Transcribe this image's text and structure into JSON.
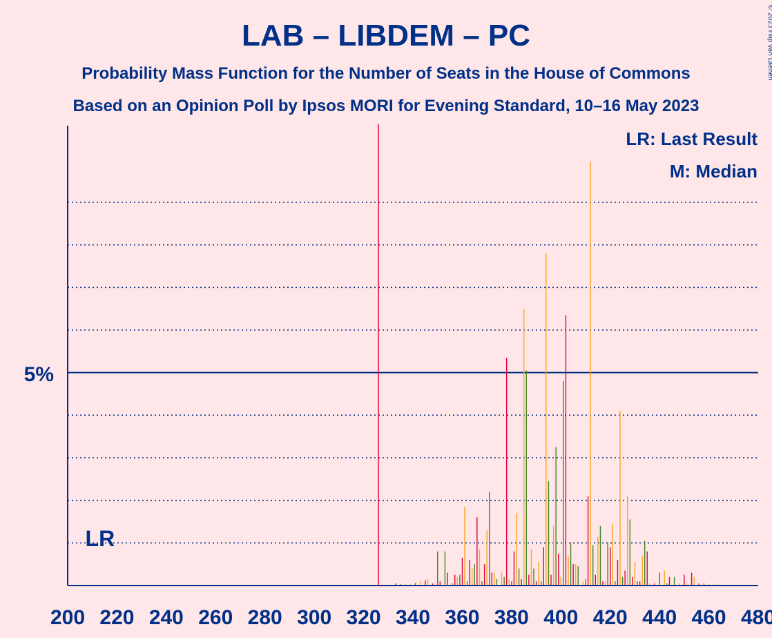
{
  "colors": {
    "background": "#FFE6E8",
    "text": "#003087",
    "lab": "#E4003B",
    "libdem": "#FAA61A",
    "pc": "#3F8428",
    "majority_line": "#E4003B"
  },
  "chart_data": {
    "type": "bar",
    "title": "LAB – LIBDEM – PC",
    "subtitle_1": "Probability Mass Function for the Number of Seats in the House of Commons",
    "subtitle_2": "Based on an Opinion Poll by Ipsos MORI for Evening Standard, 10–16 May 2023",
    "copyright": "© 2023 Filip van Laenen",
    "xlim": [
      200,
      480
    ],
    "ylim": [
      0,
      10.8
    ],
    "x_ticks": [
      "200",
      "220",
      "240",
      "260",
      "280",
      "300",
      "320",
      "340",
      "360",
      "380",
      "400",
      "420",
      "440",
      "460",
      "480"
    ],
    "y_major_tick": {
      "value": 5,
      "label": "5%"
    },
    "y_minor_gridlines": [
      1,
      2,
      3,
      4,
      6,
      7,
      8,
      9
    ],
    "majority_line_x": 326,
    "last_result": {
      "label": "LR",
      "x": 212
    },
    "legend": [
      "LR: Last Result",
      "M: Median"
    ],
    "bars": [
      {
        "x": 333,
        "v": 0.05
      },
      {
        "x": 335,
        "v": 0.03
      },
      {
        "x": 337,
        "v": 0.04
      },
      {
        "x": 339,
        "v": 0.02
      },
      {
        "x": 341,
        "v": 0.06
      },
      {
        "x": 343,
        "v": 0.1
      },
      {
        "x": 345,
        "v": 0.12
      },
      {
        "x": 346,
        "v": 0.15
      },
      {
        "x": 348,
        "v": 0.05
      },
      {
        "x": 350,
        "v": 0.8
      },
      {
        "x": 351,
        "v": 0.1
      },
      {
        "x": 353,
        "v": 0.8
      },
      {
        "x": 354,
        "v": 0.3
      },
      {
        "x": 356,
        "v": 0.05
      },
      {
        "x": 357,
        "v": 0.25
      },
      {
        "x": 358,
        "v": 0.2
      },
      {
        "x": 359,
        "v": 0.25
      },
      {
        "x": 360,
        "v": 0.65
      },
      {
        "x": 361,
        "v": 1.85
      },
      {
        "x": 362,
        "v": 0.1
      },
      {
        "x": 363,
        "v": 0.6
      },
      {
        "x": 364,
        "v": 0.4
      },
      {
        "x": 365,
        "v": 0.5
      },
      {
        "x": 366,
        "v": 1.6
      },
      {
        "x": 367,
        "v": 0.85
      },
      {
        "x": 368,
        "v": 0.1
      },
      {
        "x": 369,
        "v": 0.5
      },
      {
        "x": 370,
        "v": 1.3
      },
      {
        "x": 371,
        "v": 2.2
      },
      {
        "x": 372,
        "v": 0.3
      },
      {
        "x": 373,
        "v": 0.3
      },
      {
        "x": 374,
        "v": 0.15
      },
      {
        "x": 376,
        "v": 0.3
      },
      {
        "x": 377,
        "v": 0.2
      },
      {
        "x": 378,
        "v": 5.35
      },
      {
        "x": 379,
        "v": 0.15
      },
      {
        "x": 380,
        "v": 0.1
      },
      {
        "x": 381,
        "v": 0.8
      },
      {
        "x": 382,
        "v": 1.7
      },
      {
        "x": 383,
        "v": 0.4
      },
      {
        "x": 384,
        "v": 0.15
      },
      {
        "x": 385,
        "v": 6.5
      },
      {
        "x": 386,
        "v": 5.05
      },
      {
        "x": 387,
        "v": 0.25
      },
      {
        "x": 388,
        "v": 0.85
      },
      {
        "x": 389,
        "v": 0.4
      },
      {
        "x": 390,
        "v": 0.1
      },
      {
        "x": 391,
        "v": 0.55
      },
      {
        "x": 392,
        "v": 0.1
      },
      {
        "x": 393,
        "v": 0.9
      },
      {
        "x": 394,
        "v": 7.8
      },
      {
        "x": 395,
        "v": 2.45
      },
      {
        "x": 396,
        "v": 0.25
      },
      {
        "x": 397,
        "v": 1.4
      },
      {
        "x": 398,
        "v": 3.25
      },
      {
        "x": 399,
        "v": 0.75
      },
      {
        "x": 400,
        "v": 0.2
      },
      {
        "x": 401,
        "v": 4.8
      },
      {
        "x": 402,
        "v": 6.35
      },
      {
        "x": 403,
        "v": 0.7
      },
      {
        "x": 404,
        "v": 1.0
      },
      {
        "x": 405,
        "v": 0.5
      },
      {
        "x": 406,
        "v": 0.5
      },
      {
        "x": 407,
        "v": 0.45
      },
      {
        "x": 409,
        "v": 0.1
      },
      {
        "x": 410,
        "v": 0.15
      },
      {
        "x": 411,
        "v": 2.1
      },
      {
        "x": 412,
        "v": 9.95
      },
      {
        "x": 413,
        "v": 0.95
      },
      {
        "x": 414,
        "v": 0.25
      },
      {
        "x": 415,
        "v": 1.15
      },
      {
        "x": 416,
        "v": 1.4
      },
      {
        "x": 417,
        "v": 0.1
      },
      {
        "x": 418,
        "v": 0.1
      },
      {
        "x": 419,
        "v": 1.0
      },
      {
        "x": 420,
        "v": 0.9
      },
      {
        "x": 421,
        "v": 1.45
      },
      {
        "x": 422,
        "v": 0.1
      },
      {
        "x": 423,
        "v": 0.6
      },
      {
        "x": 424,
        "v": 4.1
      },
      {
        "x": 425,
        "v": 0.2
      },
      {
        "x": 426,
        "v": 0.35
      },
      {
        "x": 427,
        "v": 2.1
      },
      {
        "x": 428,
        "v": 1.55
      },
      {
        "x": 429,
        "v": 0.2
      },
      {
        "x": 430,
        "v": 0.55
      },
      {
        "x": 431,
        "v": 0.1
      },
      {
        "x": 432,
        "v": 0.1
      },
      {
        "x": 433,
        "v": 0.7
      },
      {
        "x": 434,
        "v": 1.05
      },
      {
        "x": 435,
        "v": 0.8
      },
      {
        "x": 436,
        "v": 0.05
      },
      {
        "x": 438,
        "v": 0.05
      },
      {
        "x": 440,
        "v": 0.3
      },
      {
        "x": 442,
        "v": 0.35
      },
      {
        "x": 443,
        "v": 0.05
      },
      {
        "x": 444,
        "v": 0.2
      },
      {
        "x": 446,
        "v": 0.2
      },
      {
        "x": 448,
        "v": 0.05
      },
      {
        "x": 450,
        "v": 0.25
      },
      {
        "x": 451,
        "v": 0.05
      },
      {
        "x": 453,
        "v": 0.3
      },
      {
        "x": 454,
        "v": 0.2
      },
      {
        "x": 456,
        "v": 0.05
      },
      {
        "x": 458,
        "v": 0.05
      },
      {
        "x": 460,
        "v": 0.03
      },
      {
        "x": 462,
        "v": 0.02
      },
      {
        "x": 464,
        "v": 0.02
      },
      {
        "x": 466,
        "v": 0.02
      },
      {
        "x": 468,
        "v": 0.01
      },
      {
        "x": 470,
        "v": 0.01
      }
    ]
  }
}
